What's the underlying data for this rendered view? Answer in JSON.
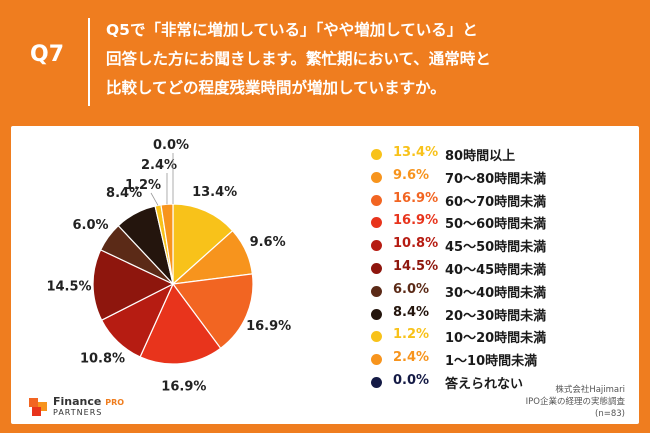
{
  "header": {
    "q_label": "Q7",
    "question_lines": [
      "Q5で「非常に増加している」「やや増加している」と",
      "回答した方にお聞きします。繁忙期において、通常時と",
      "比較してどの程度残業時間が増加していますか。"
    ]
  },
  "chart_data": {
    "type": "pie",
    "categories": [
      "80時間以上",
      "70〜80時間未満",
      "60〜70時間未満",
      "50〜60時間未満",
      "45〜50時間未満",
      "40〜45時間未満",
      "30〜40時間未満",
      "20〜30時間未満",
      "10〜20時間未満",
      "1〜10時間未満",
      "答えられない"
    ],
    "values": [
      13.4,
      9.6,
      16.9,
      16.9,
      10.8,
      14.5,
      6.0,
      8.4,
      1.2,
      2.4,
      0.0
    ],
    "value_labels": [
      "13.4%",
      "9.6%",
      "16.9%",
      "16.9%",
      "10.8%",
      "14.5%",
      "6.0%",
      "8.4%",
      "1.2%",
      "2.4%",
      "0.0%"
    ],
    "colors": [
      "#f8c21a",
      "#f7941d",
      "#f26522",
      "#e8341c",
      "#b61c12",
      "#8e160d",
      "#5b2a17",
      "#24150d",
      "#f8c21a",
      "#f7941d",
      "#141a45"
    ],
    "pct_colors": [
      "#f8c21a",
      "#f7941d",
      "#f26522",
      "#e8341c",
      "#b61c12",
      "#8e160d",
      "#5b2a17",
      "#24150d",
      "#f8c21a",
      "#f7941d",
      "#141a45"
    ],
    "start": "12 o'clock",
    "direction": "clockwise"
  },
  "footer": {
    "logo_name": "Finance",
    "logo_pro": "PRO",
    "logo_sub": "PARTNERS",
    "source_lines": [
      "株式会社Hajimari",
      "IPO企業の経理の実態調査",
      "(n=83)"
    ]
  }
}
